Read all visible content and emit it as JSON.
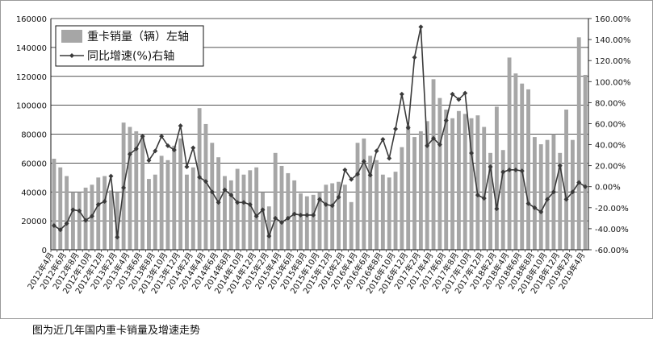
{
  "caption": "图为近几年国内重卡销量及增速走势",
  "chart_data": {
    "type": "bar+line",
    "categories": [
      "2012年4月",
      "2012年5月",
      "2012年6月",
      "2012年7月",
      "2012年8月",
      "2012年9月",
      "2012年10月",
      "2012年11月",
      "2012年12月",
      "2013年1月",
      "2013年2月",
      "2013年3月",
      "2013年4月",
      "2013年5月",
      "2013年6月",
      "2013年7月",
      "2013年8月",
      "2013年9月",
      "2013年10月",
      "2013年11月",
      "2013年12月",
      "2014年1月",
      "2014年2月",
      "2014年3月",
      "2014年4月",
      "2014年5月",
      "2014年6月",
      "2014年7月",
      "2014年8月",
      "2014年9月",
      "2014年10月",
      "2014年11月",
      "2014年12月",
      "2015年1月",
      "2015年2月",
      "2015年3月",
      "2015年4月",
      "2015年5月",
      "2015年6月",
      "2015年7月",
      "2015年8月",
      "2015年9月",
      "2015年10月",
      "2015年11月",
      "2015年12月",
      "2016年1月",
      "2016年2月",
      "2016年3月",
      "2016年4月",
      "2016年5月",
      "2016年6月",
      "2016年7月",
      "2016年8月",
      "2016年9月",
      "2016年10月",
      "2016年11月",
      "2016年12月",
      "2017年1月",
      "2017年2月",
      "2017年3月",
      "2017年4月",
      "2017年5月",
      "2017年6月",
      "2017年7月",
      "2017年8月",
      "2017年9月",
      "2017年10月",
      "2017年11月",
      "2017年12月",
      "2018年1月",
      "2018年2月",
      "2018年3月",
      "2018年4月",
      "2018年5月",
      "2018年6月",
      "2018年7月",
      "2018年8月",
      "2018年9月",
      "2018年10月",
      "2018年11月",
      "2018年12月",
      "2019年1月",
      "2019年2月",
      "2019年3月",
      "2019年4月"
    ],
    "tick_labels": [
      "2012年4月",
      "2012年6月",
      "2012年8月",
      "2012年10月",
      "2012年12月",
      "2013年2月",
      "2013年4月",
      "2013年6月",
      "2013年8月",
      "2013年10月",
      "2013年12月",
      "2014年2月",
      "2014年4月",
      "2014年6月",
      "2014年8月",
      "2014年10月",
      "2014年12月",
      "2015年2月",
      "2015年4月",
      "2015年6月",
      "2015年8月",
      "2015年10月",
      "2015年12月",
      "2016年2月",
      "2016年4月",
      "2016年6月",
      "2016年8月",
      "2016年10月",
      "2016年12月",
      "2017年2月",
      "2017年4月",
      "2017年6月",
      "2017年8月",
      "2017年10月",
      "2017年12月",
      "2018年2月",
      "2018年4月",
      "2018年6月",
      "2018年8月",
      "2018年10月",
      "2018年12月",
      "2019年2月",
      "2019年4月"
    ],
    "series": [
      {
        "name": "重卡销量（辆）左轴",
        "kind": "bar",
        "axis": "left",
        "color": "#a6a6a6",
        "values": [
          63000,
          57000,
          51000,
          40000,
          40000,
          43000,
          45000,
          50000,
          51000,
          41000,
          40000,
          88000,
          85000,
          82000,
          80000,
          49000,
          52000,
          65000,
          62000,
          72000,
          77000,
          52000,
          57000,
          98000,
          87000,
          74000,
          64000,
          51000,
          48000,
          56000,
          52000,
          55000,
          57000,
          40000,
          30000,
          67000,
          58000,
          53000,
          48000,
          39000,
          37000,
          38000,
          40000,
          45000,
          46000,
          47000,
          45000,
          33000,
          74000,
          77000,
          65000,
          62000,
          52000,
          50000,
          54000,
          71000,
          86000,
          78000,
          82000,
          89000,
          118000,
          105000,
          97000,
          91000,
          96000,
          94000,
          91000,
          93000,
          85000,
          67000,
          99000,
          69000,
          133000,
          122000,
          115000,
          111000,
          78000,
          73000,
          76000,
          80000,
          67000,
          97000,
          76000,
          147000,
          121000
        ]
      },
      {
        "name": "同比增速(%)右轴",
        "kind": "line",
        "axis": "right",
        "color": "#3a3a3a",
        "values": [
          -37,
          -41,
          -35,
          -22,
          -23,
          -32,
          -28,
          -17,
          -14,
          10,
          -48,
          -1,
          31,
          36,
          48,
          25,
          34,
          48,
          39,
          35,
          58,
          19,
          37,
          9,
          5,
          -5,
          -15,
          -3,
          -8,
          -15,
          -15,
          -17,
          -28,
          -22,
          -47,
          -30,
          -34,
          -30,
          -26,
          -27,
          -27,
          -27,
          -12,
          -17,
          -18,
          -10,
          16,
          7,
          12,
          24,
          11,
          34,
          45,
          27,
          55,
          88,
          56,
          123,
          152,
          39,
          46,
          40,
          63,
          88,
          83,
          89,
          32,
          -8,
          -11,
          19,
          -21,
          14,
          16,
          16,
          15,
          -16,
          -20,
          -24,
          -12,
          -5,
          20,
          -12,
          -5,
          4,
          0
        ]
      }
    ],
    "left_axis": {
      "ylim": [
        0,
        160000
      ],
      "ticks": [
        "0",
        "20000",
        "40000",
        "60000",
        "80000",
        "100000",
        "120000",
        "140000",
        "160000"
      ]
    },
    "right_axis": {
      "ylim": [
        -60,
        160
      ],
      "ticks": [
        "-60.00%",
        "-40.00%",
        "-20.00%",
        "0.00%",
        "20.00%",
        "40.00%",
        "60.00%",
        "80.00%",
        "100.00%",
        "120.00%",
        "140.00%",
        "160.00%"
      ]
    },
    "legend": {
      "placement": "top-left",
      "entries": [
        "重卡销量（辆）左轴",
        "同比增速(%)右轴"
      ]
    },
    "grid": true
  }
}
